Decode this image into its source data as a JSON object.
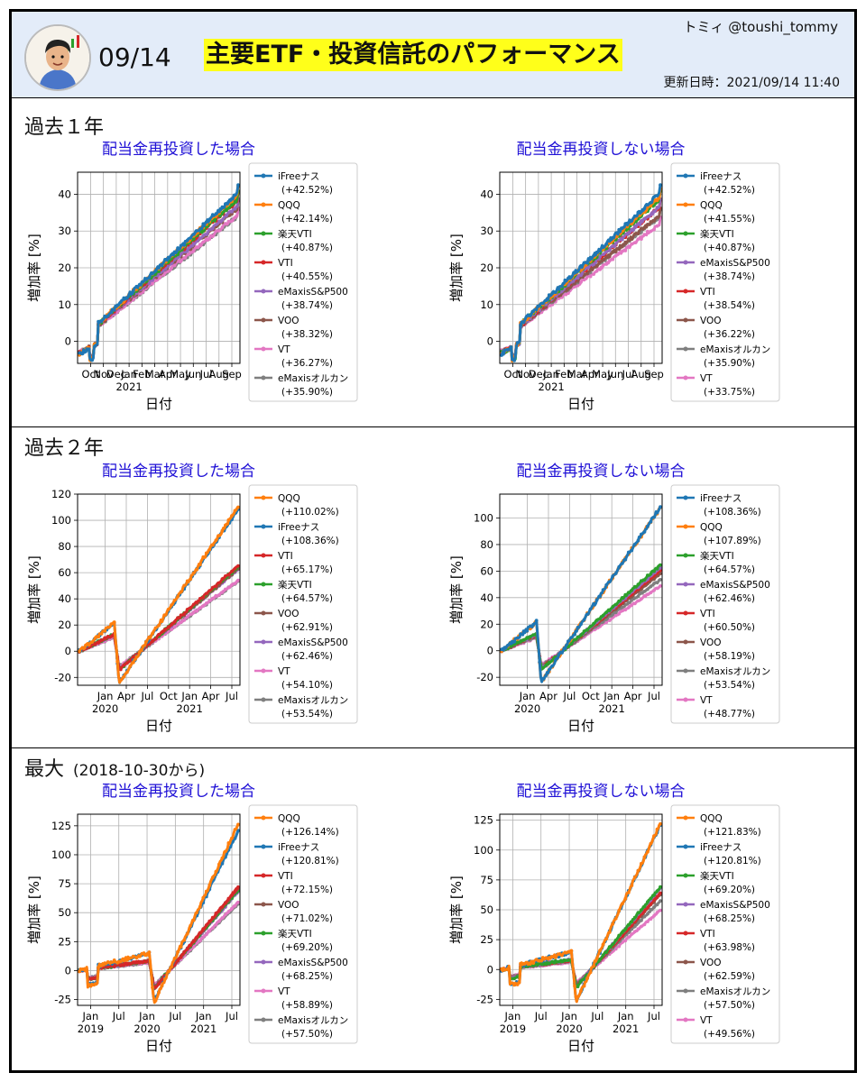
{
  "header": {
    "date": "09/14",
    "title": "主要ETF・投資信託のパフォーマンス",
    "author": "トミィ @toushi_tommy",
    "updated": "更新日時：2021/09/14 11:40"
  },
  "sections": [
    {
      "title": "過去１年",
      "note": ""
    },
    {
      "title": "過去２年",
      "note": ""
    },
    {
      "title": "最大",
      "note": "(2018-10-30から)"
    }
  ],
  "colors": {
    "iFreeナス": "#1f77b4",
    "QQQ": "#ff7f0e",
    "楽天VTI": "#2ca02c",
    "VTI": "#d62728",
    "eMaxisS&P500": "#9467bd",
    "VOO": "#8c564b",
    "VT": "#e377c2",
    "eMaxisオルカン": "#7f7f7f"
  },
  "chart_data": [
    {
      "type": "line",
      "title": "配当金再投資した場合",
      "xlabel": "日付",
      "ylabel": "増加率 [%]",
      "ylim": [
        -6,
        46
      ],
      "yticks": [
        0,
        10,
        20,
        30,
        40
      ],
      "xticks": [
        "Oct",
        "Nov",
        "Dec",
        "Jan\n2021",
        "Feb",
        "Mar",
        "Apr",
        "May",
        "Jun",
        "Jul",
        "Aug",
        "Sep"
      ],
      "grid": true,
      "legend": "right",
      "series": [
        {
          "name": "iFreeナス",
          "label": "(+42.52%)",
          "final": 42.52
        },
        {
          "name": "QQQ",
          "label": "(+42.14%)",
          "final": 42.14
        },
        {
          "name": "楽天VTI",
          "label": "(+40.87%)",
          "final": 40.87
        },
        {
          "name": "VTI",
          "label": "(+40.55%)",
          "final": 40.55
        },
        {
          "name": "eMaxisS&P500",
          "label": "(+38.74%)",
          "final": 38.74
        },
        {
          "name": "VOO",
          "label": "(+38.32%)",
          "final": 38.32
        },
        {
          "name": "VT",
          "label": "(+36.27%)",
          "final": 36.27
        },
        {
          "name": "eMaxisオルカン",
          "label": "(+35.90%)",
          "final": 35.9
        }
      ]
    },
    {
      "type": "line",
      "title": "配当金再投資しない場合",
      "xlabel": "日付",
      "ylabel": "増加率 [%]",
      "ylim": [
        -6,
        46
      ],
      "yticks": [
        0,
        10,
        20,
        30,
        40
      ],
      "xticks": [
        "Oct",
        "Nov",
        "Dec",
        "Jan\n2021",
        "Feb",
        "Mar",
        "Apr",
        "May",
        "Jun",
        "Jul",
        "Aug",
        "Sep"
      ],
      "grid": true,
      "legend": "right",
      "series": [
        {
          "name": "iFreeナス",
          "label": "(+42.52%)",
          "final": 42.52
        },
        {
          "name": "QQQ",
          "label": "(+41.55%)",
          "final": 41.55
        },
        {
          "name": "楽天VTI",
          "label": "(+40.87%)",
          "final": 40.87
        },
        {
          "name": "eMaxisS&P500",
          "label": "(+38.74%)",
          "final": 38.74
        },
        {
          "name": "VTI",
          "label": "(+38.54%)",
          "final": 38.54
        },
        {
          "name": "VOO",
          "label": "(+36.22%)",
          "final": 36.22
        },
        {
          "name": "eMaxisオルカン",
          "label": "(+35.90%)",
          "final": 35.9
        },
        {
          "name": "VT",
          "label": "(+33.75%)",
          "final": 33.75
        }
      ]
    },
    {
      "type": "line",
      "title": "配当金再投資した場合",
      "xlabel": "日付",
      "ylabel": "増加率 [%]",
      "ylim": [
        -26,
        120
      ],
      "yticks": [
        -20,
        0,
        20,
        40,
        60,
        80,
        100,
        120
      ],
      "xticks": [
        "Jan\n2020",
        "Apr",
        "Jul",
        "Oct",
        "Jan\n2021",
        "Apr",
        "Jul"
      ],
      "grid": true,
      "legend": "right",
      "series": [
        {
          "name": "QQQ",
          "label": "(+110.02%)",
          "final": 110.02
        },
        {
          "name": "iFreeナス",
          "label": "(+108.36%)",
          "final": 108.36
        },
        {
          "name": "VTI",
          "label": "(+65.17%)",
          "final": 65.17
        },
        {
          "name": "楽天VTI",
          "label": "(+64.57%)",
          "final": 64.57
        },
        {
          "name": "VOO",
          "label": "(+62.91%)",
          "final": 62.91
        },
        {
          "name": "eMaxisS&P500",
          "label": "(+62.46%)",
          "final": 62.46
        },
        {
          "name": "VT",
          "label": "(+54.10%)",
          "final": 54.1
        },
        {
          "name": "eMaxisオルカン",
          "label": "(+53.54%)",
          "final": 53.54
        }
      ]
    },
    {
      "type": "line",
      "title": "配当金再投資しない場合",
      "xlabel": "日付",
      "ylabel": "増加率 [%]",
      "ylim": [
        -26,
        118
      ],
      "yticks": [
        -20,
        0,
        20,
        40,
        60,
        80,
        100
      ],
      "xticks": [
        "Jan\n2020",
        "Apr",
        "Jul",
        "Oct",
        "Jan\n2021",
        "Apr",
        "Jul"
      ],
      "grid": true,
      "legend": "right",
      "series": [
        {
          "name": "iFreeナス",
          "label": "(+108.36%)",
          "final": 108.36
        },
        {
          "name": "QQQ",
          "label": "(+107.89%)",
          "final": 107.89
        },
        {
          "name": "楽天VTI",
          "label": "(+64.57%)",
          "final": 64.57
        },
        {
          "name": "eMaxisS&P500",
          "label": "(+62.46%)",
          "final": 62.46
        },
        {
          "name": "VTI",
          "label": "(+60.50%)",
          "final": 60.5
        },
        {
          "name": "VOO",
          "label": "(+58.19%)",
          "final": 58.19
        },
        {
          "name": "eMaxisオルカン",
          "label": "(+53.54%)",
          "final": 53.54
        },
        {
          "name": "VT",
          "label": "(+48.77%)",
          "final": 48.77
        }
      ]
    },
    {
      "type": "line",
      "title": "配当金再投資した場合",
      "xlabel": "日付",
      "ylabel": "増加率 [%]",
      "ylim": [
        -30,
        135
      ],
      "yticks": [
        -25,
        0,
        25,
        50,
        75,
        100,
        125
      ],
      "xticks": [
        "Jan\n2019",
        "Jul",
        "Jan\n2020",
        "Jul",
        "Jan\n2021",
        "Jul"
      ],
      "grid": true,
      "legend": "right",
      "series": [
        {
          "name": "QQQ",
          "label": "(+126.14%)",
          "final": 126.14
        },
        {
          "name": "iFreeナス",
          "label": "(+120.81%)",
          "final": 120.81
        },
        {
          "name": "VTI",
          "label": "(+72.15%)",
          "final": 72.15
        },
        {
          "name": "VOO",
          "label": "(+71.02%)",
          "final": 71.02
        },
        {
          "name": "楽天VTI",
          "label": "(+69.20%)",
          "final": 69.2
        },
        {
          "name": "eMaxisS&P500",
          "label": "(+68.25%)",
          "final": 68.25
        },
        {
          "name": "VT",
          "label": "(+58.89%)",
          "final": 58.89
        },
        {
          "name": "eMaxisオルカン",
          "label": "(+57.50%)",
          "final": 57.5
        }
      ]
    },
    {
      "type": "line",
      "title": "配当金再投資しない場合",
      "xlabel": "日付",
      "ylabel": "増加率 [%]",
      "ylim": [
        -30,
        130
      ],
      "yticks": [
        -25,
        0,
        25,
        50,
        75,
        100,
        125
      ],
      "xticks": [
        "Jan\n2019",
        "Jul",
        "Jan\n2020",
        "Jul",
        "Jan\n2021",
        "Jul"
      ],
      "grid": true,
      "legend": "right",
      "series": [
        {
          "name": "QQQ",
          "label": "(+121.83%)",
          "final": 121.83
        },
        {
          "name": "iFreeナス",
          "label": "(+120.81%)",
          "final": 120.81
        },
        {
          "name": "楽天VTI",
          "label": "(+69.20%)",
          "final": 69.2
        },
        {
          "name": "eMaxisS&P500",
          "label": "(+68.25%)",
          "final": 68.25
        },
        {
          "name": "VTI",
          "label": "(+63.98%)",
          "final": 63.98
        },
        {
          "name": "VOO",
          "label": "(+62.59%)",
          "final": 62.59
        },
        {
          "name": "eMaxisオルカン",
          "label": "(+57.50%)",
          "final": 57.5
        },
        {
          "name": "VT",
          "label": "(+49.56%)",
          "final": 49.56
        }
      ]
    }
  ]
}
